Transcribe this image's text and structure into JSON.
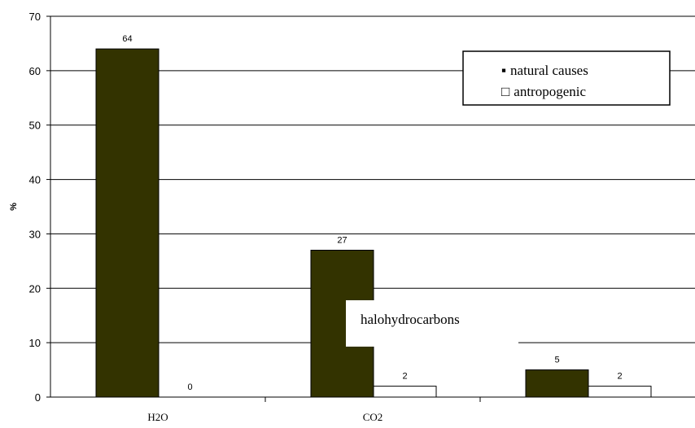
{
  "chart_data": {
    "type": "bar",
    "categories": [
      "H2O",
      "CO2",
      ""
    ],
    "series": [
      {
        "name": "natural causes",
        "values": [
          64,
          27,
          5
        ],
        "color": "#333300"
      },
      {
        "name": "antropogenic",
        "values": [
          0,
          2,
          2
        ],
        "color": "#ffffff"
      }
    ],
    "ylabel": "%",
    "xlabel": "",
    "ylim": [
      0,
      70
    ],
    "yticks": [
      0,
      10,
      20,
      30,
      40,
      50,
      60,
      70
    ],
    "grid": true,
    "legend": {
      "placement": "top-right",
      "items": [
        {
          "symbol": "▪",
          "label": "natural causes"
        },
        {
          "symbol": "□",
          "label": "antropogenic"
        }
      ]
    },
    "annotations": [
      "halohydrocarbons"
    ]
  }
}
